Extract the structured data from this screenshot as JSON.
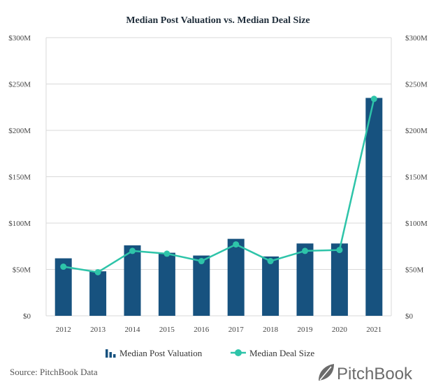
{
  "chart_data": {
    "type": "bar",
    "title": "Median Post Valuation vs. Median Deal Size",
    "categories": [
      "2012",
      "2013",
      "2014",
      "2015",
      "2016",
      "2017",
      "2018",
      "2019",
      "2020",
      "2021"
    ],
    "series": [
      {
        "name": "Median Post Valuation",
        "type": "bar",
        "axis": "left",
        "color": "#17527f",
        "values": [
          62,
          48,
          76,
          68,
          65,
          83,
          64,
          78,
          78,
          235
        ]
      },
      {
        "name": "Median Deal Size",
        "type": "line",
        "axis": "right",
        "color": "#2ec4a9",
        "values": [
          53,
          47,
          70,
          67,
          59,
          77,
          59,
          70,
          71,
          234
        ]
      }
    ],
    "ylim": [
      0,
      300
    ],
    "y_ticks": [
      "$0",
      "$50M",
      "$100M",
      "$150M",
      "$200M",
      "$250M",
      "$300M"
    ],
    "y_tick_values": [
      0,
      50,
      100,
      150,
      200,
      250,
      300
    ],
    "y2_ticks": [
      "$0",
      "$50M",
      "$100M",
      "$150M",
      "$200M",
      "$250M",
      "$300M"
    ],
    "grid": "horizontal",
    "legend": "bottom-center"
  },
  "footer": {
    "source": "Source: PitchBook Data",
    "brand": "PitchBook"
  },
  "colors": {
    "bar": "#17527f",
    "line": "#2ec4a9",
    "grid": "#d9d9d9",
    "brand": "#6b6b6b"
  },
  "icons": {
    "legend_bar": "bar-chart-icon",
    "legend_line": "line-marker-icon",
    "logo": "pitchbook-leaf-icon"
  }
}
